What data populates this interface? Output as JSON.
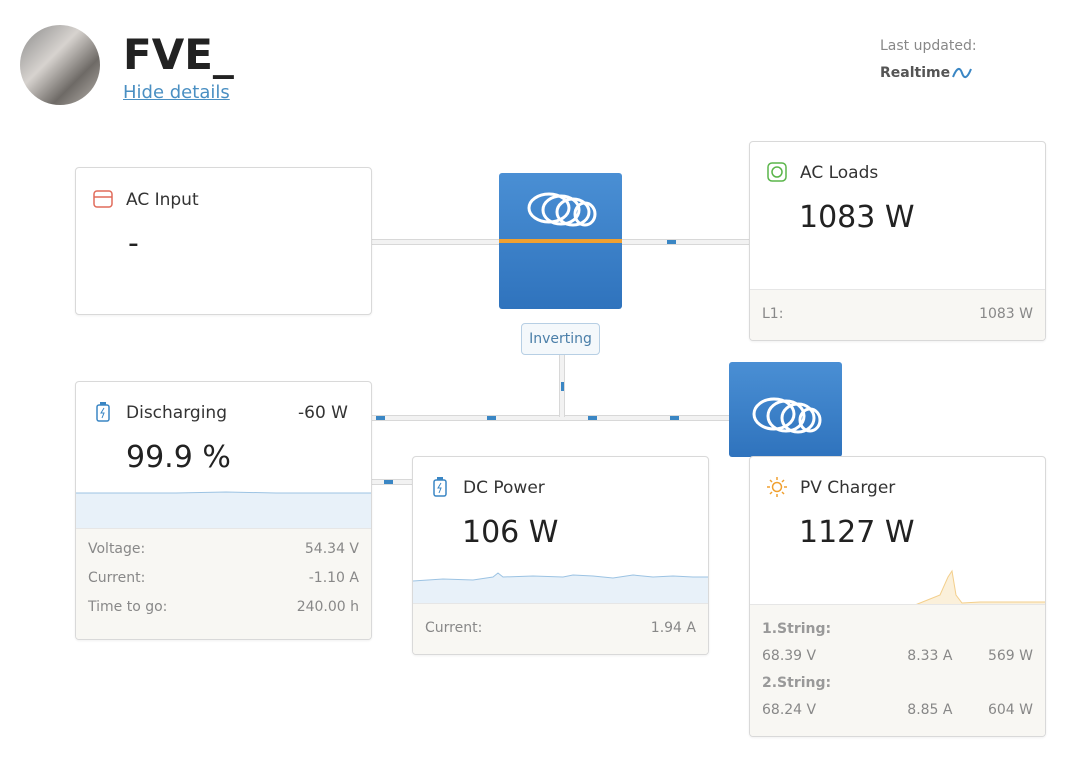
{
  "header": {
    "title": "FVE_",
    "toggle": "Hide details",
    "last_updated_label": "Last updated:",
    "last_updated_value": "Realtime"
  },
  "ac_input": {
    "title": "AC Input",
    "value": "-"
  },
  "inverter": {
    "state": "Inverting"
  },
  "ac_loads": {
    "title": "AC Loads",
    "value": "1083 W",
    "details": [
      [
        "L1:",
        "1083 W"
      ]
    ]
  },
  "battery": {
    "title": "Discharging",
    "power": "-60 W",
    "value": "99.9 %",
    "details": [
      [
        "Voltage:",
        "54.34 V"
      ],
      [
        "Current:",
        "-1.10 A"
      ],
      [
        "Time to go:",
        "240.00 h"
      ]
    ]
  },
  "dc_power": {
    "title": "DC Power",
    "value": "106 W",
    "details": [
      [
        "Current:",
        "1.94 A"
      ]
    ]
  },
  "pv_charger": {
    "title": "PV Charger",
    "value": "1127 W",
    "strings": [
      {
        "name": "1.String:",
        "voltage": "68.39 V",
        "current": "8.33 A",
        "power": "569 W"
      },
      {
        "name": "2.String:",
        "voltage": "68.24 V",
        "current": "8.85 A",
        "power": "604 W"
      }
    ]
  }
}
